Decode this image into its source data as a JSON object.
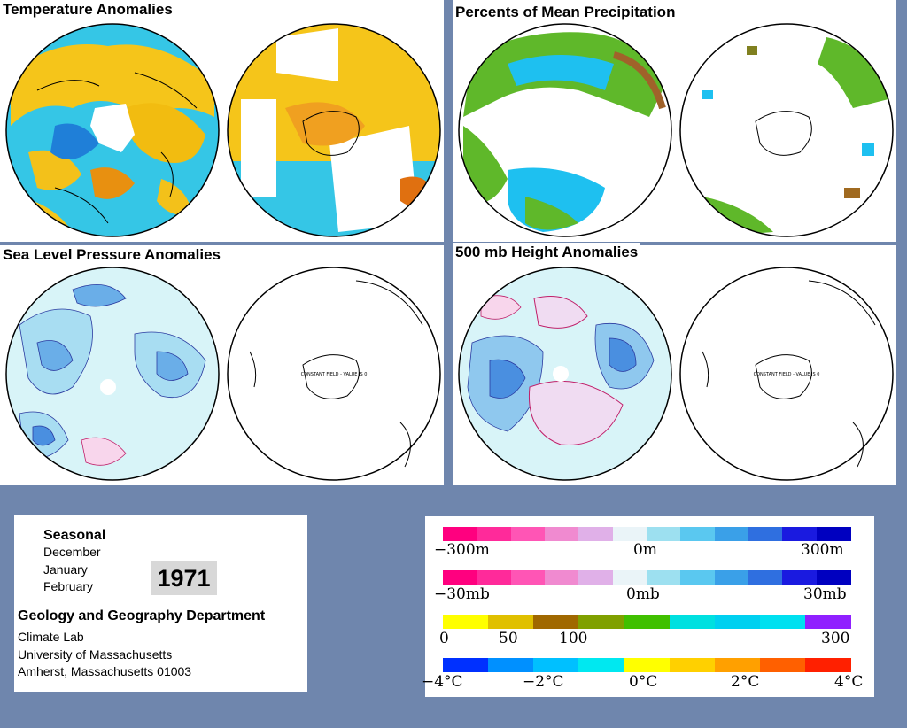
{
  "panels": {
    "temperature": {
      "title": "Temperature Anomalies"
    },
    "precipitation": {
      "title": "Percents of Mean Precipitation"
    },
    "sea_level_pressure": {
      "title": "Sea Level Pressure Anomalies"
    },
    "height_500mb": {
      "title": "500 mb Height Anomalies"
    }
  },
  "southern_hemisphere_text": "CONSTANT FIELD - VALUE IS 0",
  "info": {
    "seasonal": "Seasonal",
    "months": [
      "December",
      "January",
      "February"
    ],
    "year": "1971",
    "department": "Geology and Geography Department",
    "lab": "Climate Lab",
    "university": "University of Massachusetts",
    "address": "Amherst, Massachusetts 01003"
  },
  "legend": {
    "height": {
      "left": "−300m",
      "mid": "0m",
      "right": "300m"
    },
    "pressure": {
      "left": "−30mb",
      "mid": "0mb",
      "right": "30mb"
    },
    "precip": {
      "a": "0",
      "b": "50",
      "c": "100",
      "d": "300"
    },
    "temp": {
      "a": "−4°C",
      "b": "−2°C",
      "c": "0°C",
      "d": "2°C",
      "e": "4°C"
    },
    "colors": {
      "diverging": [
        "#ff007f",
        "#ff2a9a",
        "#ff55b5",
        "#f08ad0",
        "#e0b0e8",
        "#eaf4f8",
        "#9de0f0",
        "#5ac8f0",
        "#3aa0e8",
        "#2f6fe0",
        "#1a1ae0",
        "#0000c0"
      ],
      "precip": [
        "#ffff00",
        "#e0c000",
        "#a06800",
        "#80a000",
        "#40c000",
        "#00e0e0",
        "#00d0f0",
        "#00e0f0",
        "#9020ff"
      ],
      "temperature": [
        "#0030ff",
        "#0090ff",
        "#00c0ff",
        "#00e8f0",
        "#ffff00",
        "#ffd000",
        "#ffa000",
        "#ff6000",
        "#ff2000"
      ]
    }
  }
}
